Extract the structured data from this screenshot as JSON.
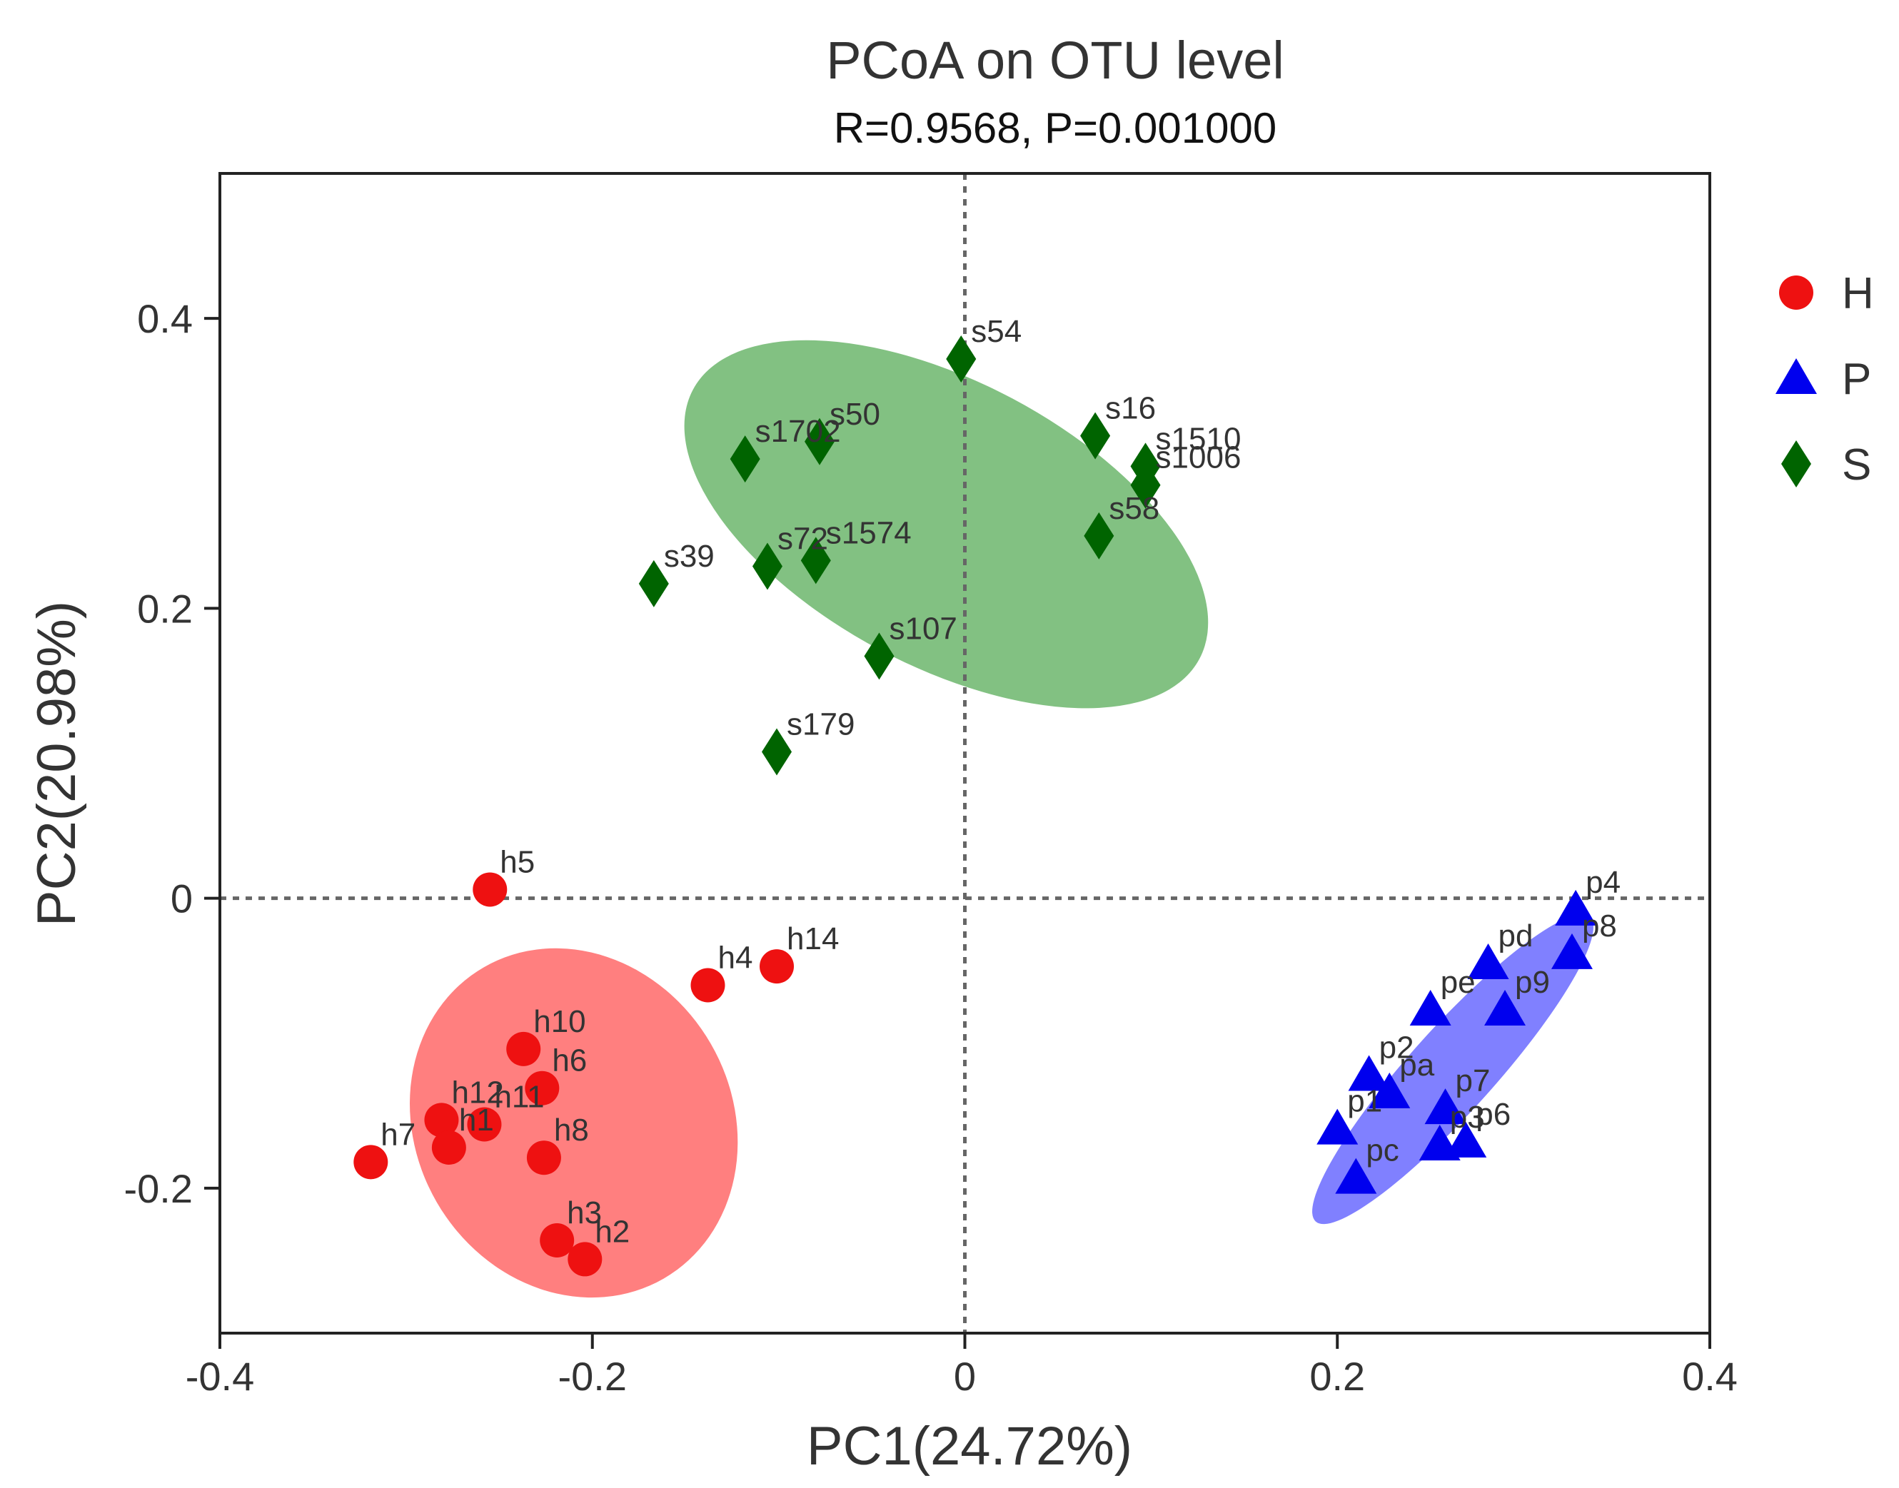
{
  "chart_data": {
    "type": "scatter",
    "title": "PCoA on OTU level",
    "subtitle": "R=0.9568, P=0.001000",
    "xlabel": "PC1(24.72%)",
    "ylabel": "PC2(20.98%)",
    "xlim": [
      -0.4,
      0.4
    ],
    "ylim": [
      -0.3,
      0.5
    ],
    "xticks": [
      -0.4,
      -0.2,
      0,
      0.2,
      0.4
    ],
    "xtick_labels": [
      "-0.4",
      "-0.2",
      "0",
      "0.2",
      "0.4"
    ],
    "yticks": [
      -0.2,
      0,
      0.2,
      0.4
    ],
    "ytick_labels": [
      "-0.2",
      "0",
      "0.2",
      "0.4"
    ],
    "reference_lines": {
      "x": 0,
      "y": 0,
      "style": "dotted"
    },
    "legend_position": "right",
    "series": [
      {
        "name": "H",
        "marker": "circle",
        "color": "#ee1111",
        "ellipse": {
          "color": "#ff7f7f",
          "cx": -0.21,
          "cy": -0.155,
          "rx": 0.085,
          "ry": 0.124,
          "angle_deg": 30
        },
        "points": [
          {
            "label": "h5",
            "x": -0.255,
            "y": 0.006
          },
          {
            "label": "h4",
            "x": -0.138,
            "y": -0.06
          },
          {
            "label": "h14",
            "x": -0.101,
            "y": -0.047
          },
          {
            "label": "h10",
            "x": -0.237,
            "y": -0.104
          },
          {
            "label": "h6",
            "x": -0.227,
            "y": -0.131
          },
          {
            "label": "h12",
            "x": -0.281,
            "y": -0.153
          },
          {
            "label": "h11",
            "x": -0.258,
            "y": -0.156
          },
          {
            "label": "h1",
            "x": -0.277,
            "y": -0.172
          },
          {
            "label": "h7",
            "x": -0.319,
            "y": -0.182
          },
          {
            "label": "h8",
            "x": -0.226,
            "y": -0.179
          },
          {
            "label": "h3",
            "x": -0.219,
            "y": -0.236
          },
          {
            "label": "h2",
            "x": -0.204,
            "y": -0.249
          }
        ]
      },
      {
        "name": "P",
        "marker": "triangle",
        "color": "#0000ee",
        "ellipse": {
          "color": "#8080ff",
          "cx": 0.262,
          "cy": -0.118,
          "rx": 0.11,
          "ry": 0.029,
          "angle_deg": 48
        },
        "points": [
          {
            "label": "p4",
            "x": 0.328,
            "y": -0.008
          },
          {
            "label": "p8",
            "x": 0.326,
            "y": -0.038
          },
          {
            "label": "pd",
            "x": 0.281,
            "y": -0.045
          },
          {
            "label": "pe",
            "x": 0.25,
            "y": -0.077
          },
          {
            "label": "p9",
            "x": 0.29,
            "y": -0.077
          },
          {
            "label": "p2",
            "x": 0.217,
            "y": -0.122
          },
          {
            "label": "pa",
            "x": 0.228,
            "y": -0.134
          },
          {
            "label": "p7",
            "x": 0.258,
            "y": -0.145
          },
          {
            "label": "p1",
            "x": 0.2,
            "y": -0.159
          },
          {
            "label": "p3",
            "x": 0.255,
            "y": -0.17
          },
          {
            "label": "p6",
            "x": 0.269,
            "y": -0.168
          },
          {
            "label": "pc",
            "x": 0.21,
            "y": -0.193
          }
        ]
      },
      {
        "name": "S",
        "marker": "diamond",
        "color": "#006400",
        "ellipse": {
          "color": "#82c182",
          "cx": -0.01,
          "cy": 0.258,
          "rx": 0.154,
          "ry": 0.098,
          "angle_deg": -28
        },
        "points": [
          {
            "label": "s54",
            "x": -0.002,
            "y": 0.372
          },
          {
            "label": "s16",
            "x": 0.07,
            "y": 0.319
          },
          {
            "label": "s1510",
            "x": 0.097,
            "y": 0.298
          },
          {
            "label": "s1006",
            "x": 0.097,
            "y": 0.285
          },
          {
            "label": "s1702",
            "x": -0.118,
            "y": 0.303
          },
          {
            "label": "s50",
            "x": -0.078,
            "y": 0.315
          },
          {
            "label": "s58",
            "x": 0.072,
            "y": 0.25
          },
          {
            "label": "s72",
            "x": -0.106,
            "y": 0.229
          },
          {
            "label": "s1574",
            "x": -0.08,
            "y": 0.233
          },
          {
            "label": "s39",
            "x": -0.167,
            "y": 0.217
          },
          {
            "label": "s107",
            "x": -0.046,
            "y": 0.167
          },
          {
            "label": "s179",
            "x": -0.101,
            "y": 0.101
          }
        ]
      }
    ]
  }
}
